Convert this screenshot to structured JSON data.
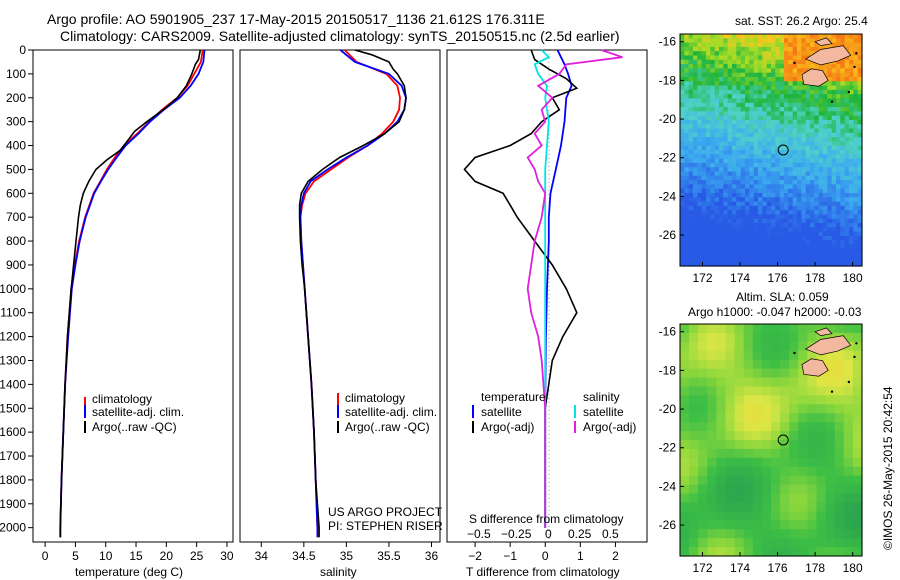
{
  "header": {
    "line1": "Argo profile: AO 5901905_237 17-May-2015 20150517_1136 21.612S 176.311E",
    "line2": "Climatology: CARS2009. Satellite-adjusted climatology: synTS_20150515.nc (2.5d earlier)"
  },
  "credit": "©IMOS 26-May-2015 20:42:54",
  "colors": {
    "climatology": "#ff0000",
    "satellite": "#0000ff",
    "argo": "#000000",
    "s_satellite": "#00e5e5",
    "s_argo": "#e020e0",
    "land": "#f2b8a0"
  },
  "chart_data": [
    {
      "type": "line",
      "name": "temperature",
      "xlabel": "temperature (deg C)",
      "xlim": [
        -2,
        31
      ],
      "ylim": [
        2060,
        0
      ],
      "xticks": [
        0,
        5,
        10,
        15,
        20,
        25,
        30
      ],
      "xticklabels": [
        "0",
        "5",
        "10",
        "15",
        "20",
        "25",
        "30"
      ],
      "yticks": [
        0,
        100,
        200,
        300,
        400,
        500,
        600,
        700,
        800,
        900,
        1000,
        1100,
        1200,
        1300,
        1400,
        1500,
        1600,
        1700,
        1800,
        1900,
        2000
      ],
      "yticklabels": [
        "0",
        "100",
        "200",
        "300",
        "400",
        "500",
        "600",
        "700",
        "800",
        "900",
        "1000",
        "1100",
        "1200",
        "1300",
        "1400",
        "1500",
        "1600",
        "1700",
        "1800",
        "1900",
        "2000"
      ],
      "legend": [
        "climatology",
        "satellite-adj. clim.",
        "Argo(..raw -QC)"
      ],
      "series": [
        {
          "name": "climatology",
          "color": "#ff0000",
          "depth": [
            0,
            50,
            100,
            150,
            200,
            250,
            300,
            350,
            400,
            450,
            500,
            550,
            600,
            650,
            700,
            800,
            900,
            1000,
            1200,
            1400,
            1600,
            1800,
            2000,
            2040
          ],
          "values": [
            26.0,
            25.7,
            24.6,
            23.5,
            21.8,
            19.3,
            17.2,
            15.2,
            13.0,
            11.5,
            10.2,
            9.1,
            8.0,
            7.3,
            6.6,
            5.6,
            4.9,
            4.3,
            3.7,
            3.3,
            3.0,
            2.7,
            2.5,
            2.5
          ]
        },
        {
          "name": "satellite-adj. clim.",
          "color": "#0000ff",
          "depth": [
            0,
            50,
            100,
            150,
            200,
            250,
            300,
            350,
            400,
            450,
            500,
            550,
            600,
            650,
            700,
            800,
            900,
            1000,
            1200,
            1400,
            1600,
            1800,
            2000,
            2040
          ],
          "values": [
            26.3,
            26.1,
            25.3,
            24.0,
            22.2,
            19.6,
            17.3,
            15.4,
            13.3,
            11.8,
            10.4,
            9.2,
            8.1,
            7.4,
            6.7,
            5.7,
            5.0,
            4.4,
            3.8,
            3.3,
            3.0,
            2.7,
            2.5,
            2.5
          ]
        },
        {
          "name": "Argo(..raw -QC)",
          "color": "#000000",
          "depth": [
            0,
            40,
            60,
            100,
            150,
            200,
            250,
            300,
            340,
            380,
            420,
            460,
            500,
            550,
            600,
            650,
            700,
            800,
            900,
            1000,
            1200,
            1400,
            1600,
            1800,
            2000,
            2040
          ],
          "values": [
            25.6,
            25.3,
            24.8,
            24.2,
            23.3,
            21.8,
            19.5,
            16.8,
            14.8,
            13.6,
            12.4,
            10.2,
            8.4,
            7.2,
            6.3,
            5.8,
            5.5,
            5.1,
            4.7,
            4.3,
            3.7,
            3.3,
            3.0,
            2.7,
            2.5,
            2.5
          ]
        }
      ],
      "caption": []
    },
    {
      "type": "line",
      "name": "salinity",
      "xlabel": "salinity",
      "xlim": [
        33.75,
        36.1
      ],
      "ylim": [
        2060,
        0
      ],
      "xticks": [
        34,
        34.5,
        35,
        35.5,
        36
      ],
      "xticklabels": [
        "34",
        "34.5",
        "35",
        "35.5",
        "36"
      ],
      "legend": [
        "climatology",
        "satellite-adj. clim.",
        "Argo(..raw -QC)"
      ],
      "series": [
        {
          "name": "climatology",
          "color": "#ff0000",
          "depth": [
            0,
            50,
            100,
            150,
            200,
            250,
            300,
            350,
            400,
            450,
            500,
            550,
            600,
            650,
            700,
            800,
            900,
            1000,
            1200,
            1400,
            1600,
            1800,
            2000,
            2040
          ],
          "values": [
            34.98,
            35.12,
            35.47,
            35.6,
            35.63,
            35.62,
            35.55,
            35.42,
            35.25,
            35.02,
            34.82,
            34.62,
            34.52,
            34.48,
            34.46,
            34.47,
            34.49,
            34.51,
            34.55,
            34.59,
            34.62,
            34.64,
            34.66,
            34.66
          ]
        },
        {
          "name": "satellite-adj. clim.",
          "color": "#0000ff",
          "depth": [
            0,
            50,
            100,
            150,
            200,
            250,
            300,
            350,
            400,
            450,
            500,
            550,
            600,
            650,
            700,
            800,
            900,
            1000,
            1200,
            1400,
            1600,
            1800,
            2000,
            2040
          ],
          "values": [
            34.93,
            35.1,
            35.5,
            35.65,
            35.7,
            35.68,
            35.6,
            35.45,
            35.25,
            35.0,
            34.78,
            34.58,
            34.5,
            34.47,
            34.46,
            34.47,
            34.49,
            34.51,
            34.55,
            34.59,
            34.62,
            34.64,
            34.66,
            34.66
          ]
        },
        {
          "name": "Argo(..raw -QC)",
          "color": "#000000",
          "depth": [
            0,
            20,
            50,
            80,
            100,
            150,
            200,
            250,
            300,
            350,
            400,
            450,
            500,
            550,
            600,
            650,
            700,
            800,
            900,
            1000,
            1200,
            1400,
            1600,
            1800,
            2000,
            2040
          ],
          "values": [
            35.1,
            35.3,
            35.5,
            35.55,
            35.6,
            35.68,
            35.7,
            35.68,
            35.62,
            35.45,
            35.2,
            34.92,
            34.72,
            34.55,
            34.47,
            34.45,
            34.45,
            34.46,
            34.48,
            34.51,
            34.55,
            34.59,
            34.62,
            34.64,
            34.68,
            34.68
          ]
        }
      ],
      "caption": [
        "US ARGO PROJECT",
        "PI: STEPHEN RISER"
      ]
    },
    {
      "type": "line",
      "name": "difference",
      "xlabel": "T difference from climatology",
      "xlim": [
        -2.8,
        2.9
      ],
      "ylim": [
        2060,
        0
      ],
      "xticks": [
        -2,
        -1,
        0,
        1,
        2
      ],
      "xticklabels": [
        "−2",
        "−1",
        "0",
        "1",
        "2"
      ],
      "top_axis_label": "S difference from climatology",
      "top_ticks": [
        "−0.5",
        "−0.25",
        "0",
        "0.25",
        "0.5"
      ],
      "legend_titles": [
        "temperature",
        "salinity"
      ],
      "legend_temperature": [
        "satellite",
        "Argo(-adj)"
      ],
      "legend_salinity": [
        "satellite",
        "Argo(-adj)"
      ],
      "series": [
        {
          "name": "T satellite",
          "color": "#0000ff",
          "depth": [
            0,
            30,
            60,
            100,
            150,
            200,
            300,
            400,
            500,
            600,
            700,
            800,
            1000,
            1200,
            1500,
            2000
          ],
          "values": [
            0.35,
            0.45,
            0.55,
            0.65,
            0.75,
            0.6,
            0.55,
            0.45,
            0.3,
            0.15,
            0.1,
            0.1,
            0.05,
            0.02,
            0.0,
            0.0
          ]
        },
        {
          "name": "T Argo(-adj)",
          "color": "#000000",
          "depth": [
            0,
            40,
            80,
            120,
            160,
            200,
            250,
            300,
            350,
            400,
            450,
            500,
            550,
            600,
            650,
            700,
            800,
            900,
            1000,
            1100,
            1200,
            1300,
            1500,
            2000
          ],
          "values": [
            -0.4,
            -0.3,
            0.1,
            0.6,
            0.9,
            0.2,
            0.4,
            -0.1,
            -0.4,
            -1.0,
            -2.0,
            -2.3,
            -2.0,
            -1.2,
            -1.0,
            -0.8,
            -0.3,
            0.2,
            0.6,
            0.9,
            0.5,
            0.2,
            0.0,
            0.0
          ]
        },
        {
          "name": "S satellite",
          "color": "#00e5e5",
          "depth": [
            0,
            30,
            60,
            100,
            150,
            200,
            300,
            400,
            500,
            700,
            1000,
            1500,
            2000
          ],
          "values": [
            -0.1,
            0.1,
            -0.3,
            -0.2,
            0.05,
            0.0,
            0.1,
            0.05,
            0.0,
            0.0,
            0.0,
            0.0,
            0.0
          ]
        },
        {
          "name": "S Argo(-adj)",
          "color": "#e020e0",
          "depth": [
            0,
            30,
            60,
            100,
            150,
            200,
            250,
            300,
            350,
            400,
            450,
            500,
            550,
            600,
            700,
            800,
            900,
            1000,
            1100,
            1200,
            1300,
            1500,
            2000
          ],
          "values": [
            1.6,
            2.2,
            0.6,
            0.4,
            -0.2,
            0.2,
            -0.1,
            0.0,
            -0.3,
            -0.1,
            -0.5,
            -0.3,
            -0.2,
            0.0,
            -0.1,
            -0.3,
            -0.4,
            -0.5,
            -0.4,
            -0.2,
            -0.1,
            0.0,
            0.0
          ]
        }
      ],
      "caption": []
    },
    {
      "type": "heatmap",
      "name": "sst-map",
      "title": "sat. SST: 26.2  Argo: 25.4",
      "xlim": [
        170.8,
        180.5
      ],
      "ylim": [
        -27.6,
        -15.6
      ],
      "xticks": [
        172,
        174,
        176,
        178,
        180
      ],
      "xticklabels": [
        "172",
        "174",
        "176",
        "178",
        "180"
      ],
      "yticks": [
        -16,
        -18,
        -20,
        -22,
        -24,
        -26
      ],
      "yticklabels": [
        "-16",
        "-18",
        "-20",
        "-22",
        "-24",
        "-26"
      ],
      "argo_position": [
        176.3,
        -21.6
      ]
    },
    {
      "type": "heatmap",
      "name": "sla-map",
      "title": "Altim. SLA: 0.059",
      "subtitle": "Argo h1000: -0.047 h2000: -0.03",
      "xlim": [
        170.8,
        180.5
      ],
      "ylim": [
        -27.6,
        -15.6
      ],
      "xticks": [
        172,
        174,
        176,
        178,
        180
      ],
      "xticklabels": [
        "172",
        "174",
        "176",
        "178",
        "180"
      ],
      "yticks": [
        -16,
        -18,
        -20,
        -22,
        -24,
        -26
      ],
      "yticklabels": [
        "-16",
        "-18",
        "-20",
        "-22",
        "-24",
        "-26"
      ],
      "argo_position": [
        176.3,
        -21.6
      ]
    }
  ]
}
